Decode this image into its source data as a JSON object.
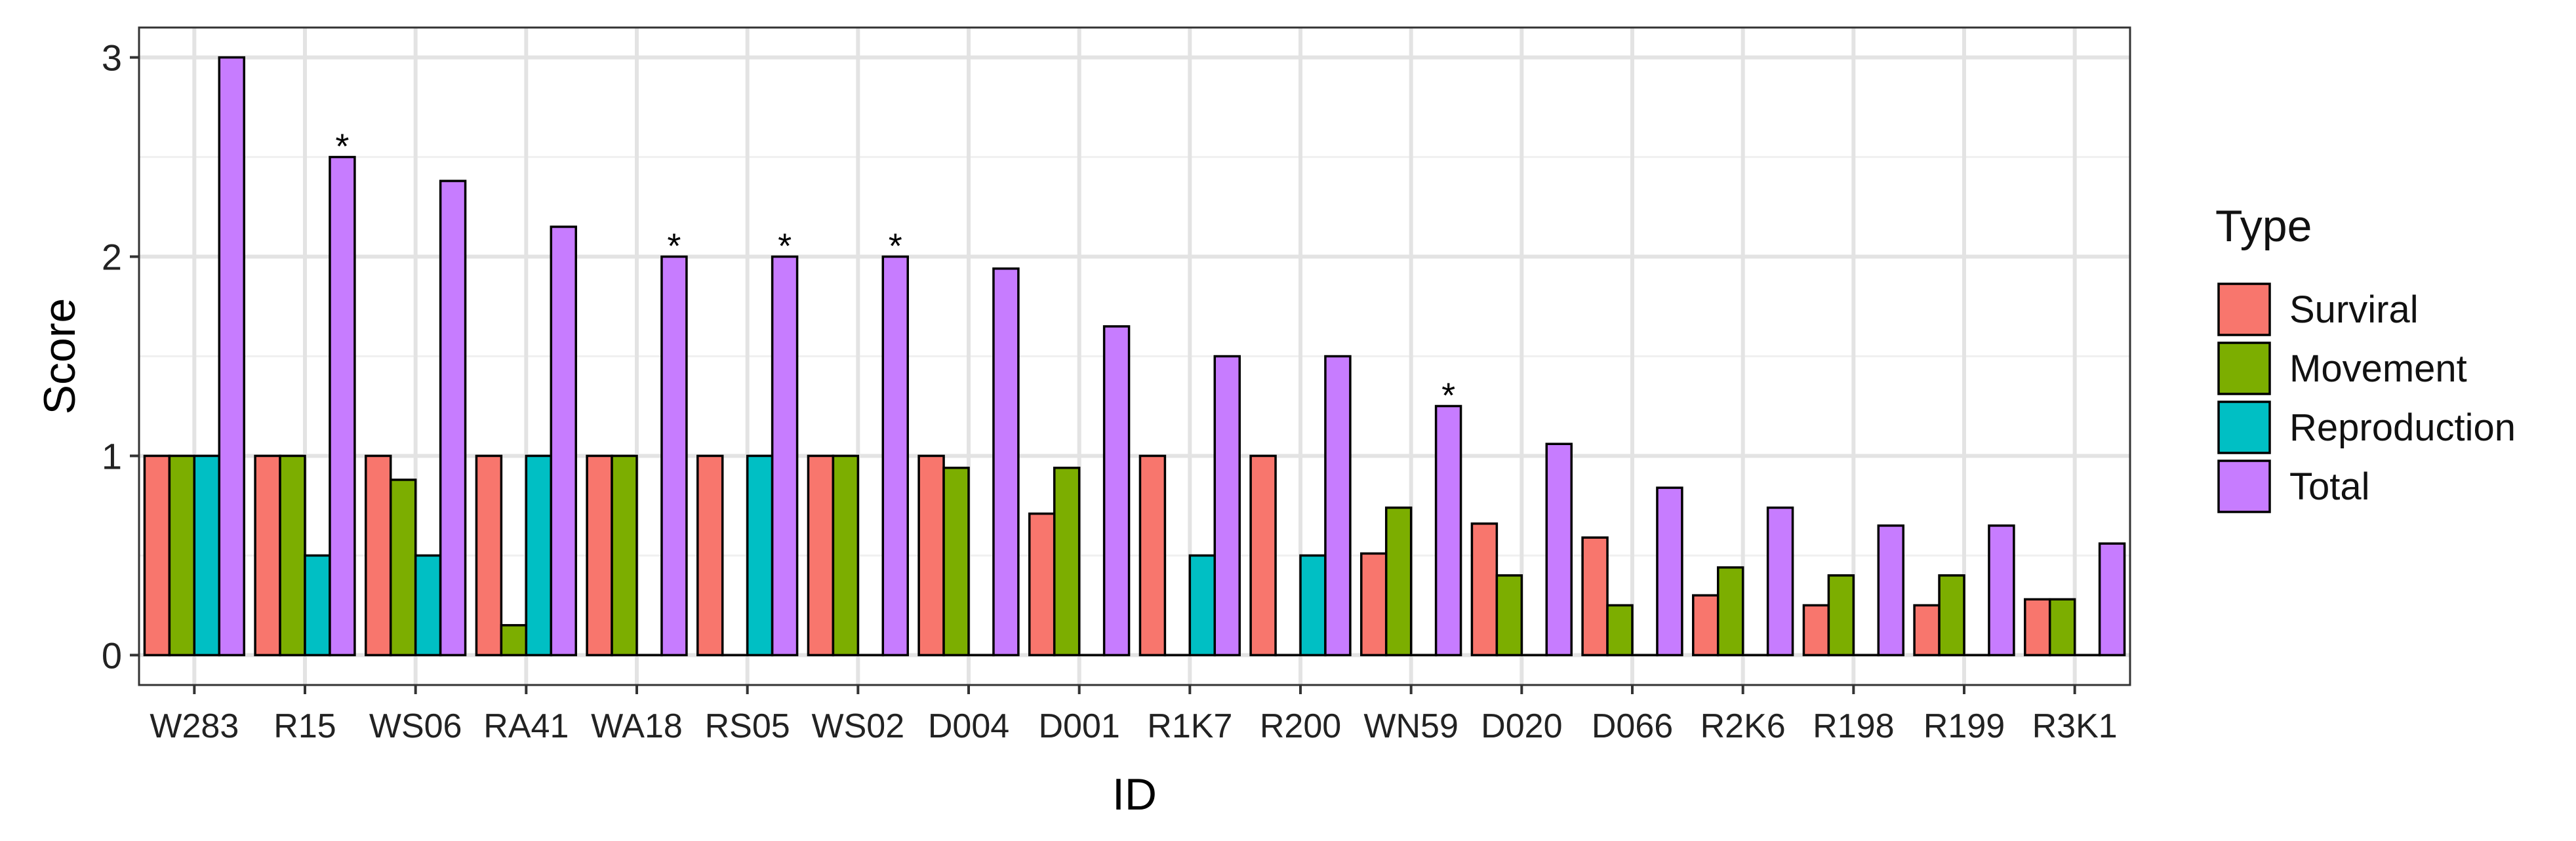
{
  "chart_data": {
    "type": "bar",
    "xlabel": "ID",
    "ylabel": "Score",
    "ylim": [
      -0.15,
      3.15
    ],
    "yticks": [
      0,
      1,
      2,
      3
    ],
    "grid": true,
    "legend_position": "right",
    "legend_title": "Type",
    "categories": [
      "W283",
      "R15",
      "WS06",
      "RA41",
      "WA18",
      "RS05",
      "WS02",
      "D004",
      "D001",
      "R1K7",
      "R200",
      "WN59",
      "D020",
      "D066",
      "R2K6",
      "R198",
      "R199",
      "R3K1"
    ],
    "series": [
      {
        "name": "Surviral",
        "color": "#F8766D",
        "values": [
          1,
          1,
          1,
          1,
          1,
          1,
          1,
          1,
          0.71,
          1,
          1,
          0.51,
          0.66,
          0.59,
          0.3,
          0.25,
          0.25,
          0.28
        ]
      },
      {
        "name": "Movement",
        "color": "#7CAE00",
        "values": [
          1,
          1,
          0.88,
          0.15,
          1,
          0,
          1,
          0.94,
          0.94,
          0,
          0,
          0.74,
          0.4,
          0.25,
          0.44,
          0.4,
          0.4,
          0.28
        ]
      },
      {
        "name": "Reproduction",
        "color": "#00BFC4",
        "values": [
          1,
          0.5,
          0.5,
          1,
          0,
          1,
          0,
          0,
          0,
          0.5,
          0.5,
          0,
          0,
          0,
          0,
          0,
          0,
          0
        ]
      },
      {
        "name": "Total",
        "color": "#C77CFF",
        "values": [
          3,
          2.5,
          2.38,
          2.15,
          2,
          2,
          2,
          1.94,
          1.65,
          1.5,
          1.5,
          1.25,
          1.06,
          0.84,
          0.74,
          0.65,
          0.65,
          0.56
        ]
      }
    ],
    "annotations": [
      {
        "category": "R15",
        "series": "Total",
        "text": "*"
      },
      {
        "category": "WA18",
        "series": "Total",
        "text": "*"
      },
      {
        "category": "RS05",
        "series": "Total",
        "text": "*"
      },
      {
        "category": "WS02",
        "series": "Total",
        "text": "*"
      },
      {
        "category": "WN59",
        "series": "Total",
        "text": "*"
      }
    ]
  }
}
